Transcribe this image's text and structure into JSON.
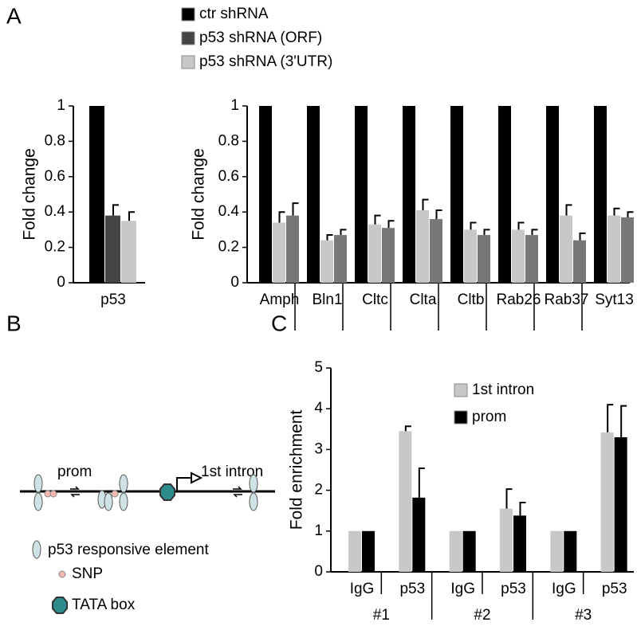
{
  "panel_labels": [
    "A",
    "B",
    "C"
  ],
  "chart_data": [
    {
      "type": "bar",
      "ylabel": "Fold change",
      "categories": [
        "p53"
      ],
      "ylim": [
        0,
        1
      ],
      "yticks": [
        0,
        0.2,
        0.4,
        0.6,
        0.8,
        1
      ],
      "series": [
        {
          "name": "ctr shRNA",
          "color": "#000000",
          "values": [
            1
          ]
        },
        {
          "name": "p53 shRNA (ORF)",
          "color": "#444444",
          "values": [
            0.38
          ],
          "errors": [
            0.06
          ]
        },
        {
          "name": "p53 shRNA (3'UTR)",
          "color": "#c8c8c8",
          "values": [
            0.35
          ],
          "errors": [
            0.05
          ]
        }
      ]
    },
    {
      "type": "bar",
      "ylabel": "Fold change",
      "categories": [
        "Amph",
        "Bln1",
        "Cltc",
        "Clta",
        "Cltb",
        "Rab26",
        "Rab37",
        "Syt13"
      ],
      "ylim": [
        0,
        1
      ],
      "yticks": [
        0,
        0.2,
        0.4,
        0.6,
        0.8,
        1
      ],
      "series": [
        {
          "color": "#000000",
          "values": [
            1,
            1,
            1,
            1,
            1,
            1,
            1,
            1
          ]
        },
        {
          "color": "#c8c8c8",
          "values": [
            0.34,
            0.24,
            0.33,
            0.41,
            0.3,
            0.3,
            0.38,
            0.38
          ],
          "errors": [
            0.06,
            0.03,
            0.05,
            0.06,
            0.04,
            0.04,
            0.06,
            0.04
          ]
        },
        {
          "color": "#777777",
          "values": [
            0.38,
            0.27,
            0.31,
            0.36,
            0.27,
            0.27,
            0.24,
            0.37
          ],
          "errors": [
            0.07,
            0.03,
            0.04,
            0.05,
            0.03,
            0.03,
            0.04,
            0.03
          ]
        }
      ]
    },
    {
      "type": "bar",
      "ylabel": "Fold enrichment",
      "categories": [
        "IgG",
        "p53",
        "IgG",
        "p53",
        "IgG",
        "p53"
      ],
      "groups": [
        "#1",
        "#2",
        "#3"
      ],
      "ylim": [
        0,
        5
      ],
      "yticks": [
        0,
        1,
        2,
        3,
        4,
        5
      ],
      "series": [
        {
          "name": "1st intron",
          "color": "#c8c8c8",
          "values": [
            1,
            3.45,
            1,
            1.55,
            1,
            3.42
          ],
          "errors": [
            null,
            0.12,
            null,
            0.48,
            null,
            0.68
          ]
        },
        {
          "name": "prom",
          "color": "#000000",
          "values": [
            1,
            1.82,
            1,
            1.38,
            1,
            3.3
          ],
          "errors": [
            null,
            0.72,
            null,
            0.32,
            null,
            0.77
          ]
        }
      ]
    }
  ],
  "diagram": {
    "prom": "prom",
    "intron": "1st intron",
    "legend": [
      "p53 responsive element",
      "SNP",
      "TATA box"
    ]
  }
}
